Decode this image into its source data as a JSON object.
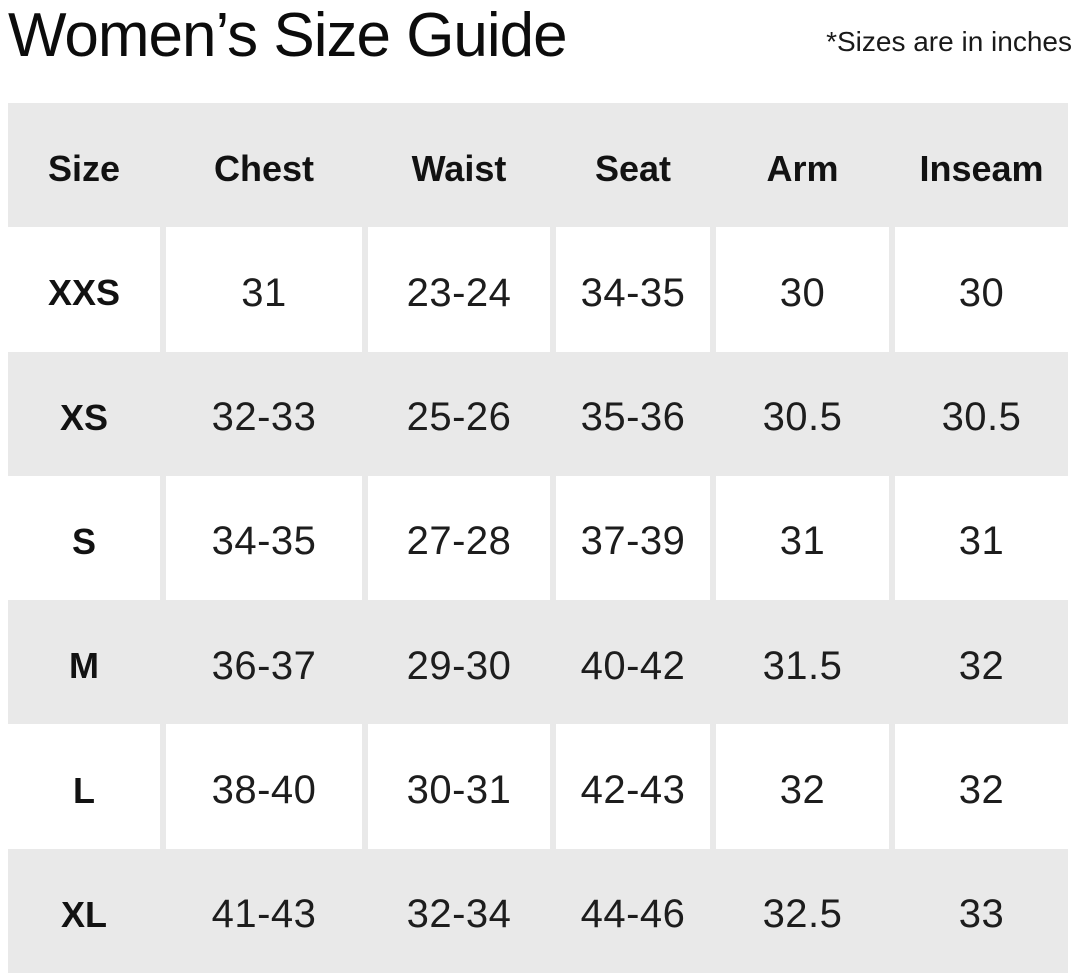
{
  "header": {
    "title": "Women’s Size Guide",
    "note": "*Sizes are in inches"
  },
  "chart_data": {
    "type": "table",
    "title": "Women’s Size Guide",
    "units_note": "*Sizes are in inches",
    "columns": [
      "Size",
      "Chest",
      "Waist",
      "Seat",
      "Arm",
      "Inseam"
    ],
    "rows": [
      {
        "size": "XXS",
        "chest": "31",
        "waist": "23-24",
        "seat": "34-35",
        "arm": "30",
        "inseam": "30"
      },
      {
        "size": "XS",
        "chest": "32-33",
        "waist": "25-26",
        "seat": "35-36",
        "arm": "30.5",
        "inseam": "30.5"
      },
      {
        "size": "S",
        "chest": "34-35",
        "waist": "27-28",
        "seat": "37-39",
        "arm": "31",
        "inseam": "31"
      },
      {
        "size": "M",
        "chest": "36-37",
        "waist": "29-30",
        "seat": "40-42",
        "arm": "31.5",
        "inseam": "32"
      },
      {
        "size": "L",
        "chest": "38-40",
        "waist": "30-31",
        "seat": "42-43",
        "arm": "32",
        "inseam": "32"
      },
      {
        "size": "XL",
        "chest": "41-43",
        "waist": "32-34",
        "seat": "44-46",
        "arm": "32.5",
        "inseam": "33"
      }
    ],
    "layout": {
      "row_striping": [
        "gray-header",
        "white",
        "gray",
        "white",
        "gray",
        "white",
        "gray"
      ],
      "grid": "no borders, gray gutters between columns on white rows"
    },
    "colors": {
      "table_background": "#e9e9e9",
      "white_cell_background": "#ffffff",
      "text": "#1a1a1a"
    }
  }
}
